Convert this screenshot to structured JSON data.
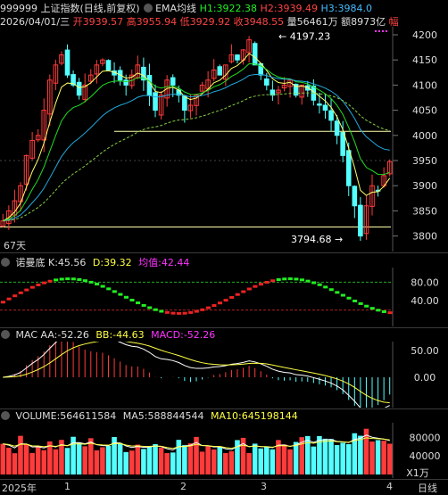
{
  "header": {
    "code": "999999",
    "name": "上证指数",
    "mode": "(日线,前复权)",
    "indicator": "EMA均线",
    "h1_label": "H1:",
    "h1": "3922.38",
    "h2_label": "H2:",
    "h2": "3939.49",
    "h3_label": "H3:",
    "h3": "3984.0"
  },
  "ohlc": {
    "date": "2026/04/01/三",
    "open_label": "开",
    "open": "3939.57",
    "high_label": "高",
    "high": "3955.94",
    "low_label": "低",
    "low": "3929.92",
    "close_label": "收",
    "close": "3948.55",
    "vol_label": "量",
    "vol": "56461万",
    "amt_label": "额",
    "amt": "8973亿",
    "more": "幅"
  },
  "price_panel": {
    "axis_ticks": [
      "4200",
      "4150",
      "4100",
      "4050",
      "4000",
      "3950",
      "3900",
      "3850",
      "3800"
    ],
    "high_mark": "4197.23",
    "low_mark": "3794.68",
    "days_label": "67天"
  },
  "kd_panel": {
    "name": "诺曼底",
    "k_label": "K:",
    "k": "45.56",
    "d_label": "D:",
    "d": "39.32",
    "avg_label": "均值:",
    "avg": "42.44",
    "axis_ticks": [
      "80.00",
      "40.00"
    ]
  },
  "macd_panel": {
    "name": "MAC",
    "aa_label": "AA:",
    "aa": "-52.26",
    "bb_label": "BB:",
    "bb": "-44.63",
    "macd_label": "MACD:",
    "macd": "-52.26",
    "axis_ticks": [
      "50.00",
      "0.00"
    ]
  },
  "volume_panel": {
    "name": "VOLUME:",
    "volume": "564611584",
    "ma5_label": "MA5:",
    "ma5": "588844544",
    "ma10_label": "MA10:",
    "ma10": "645198144",
    "axis_ticks": [
      "80000",
      "40000"
    ],
    "unit": "X1万"
  },
  "time_axis": {
    "labels": [
      "2025年",
      "1",
      "2",
      "3",
      "4"
    ],
    "period": "日线"
  },
  "colors": {
    "up": "#ff3b3b",
    "down": "#54ffff",
    "ma_yellow": "#ffff66",
    "ma_green": "#22dd22",
    "ma_cyan": "#22aadd",
    "kd_green": "#22ee22",
    "kd_red": "#ee2222",
    "purple": "#ff33ff",
    "h1": "#22ee22",
    "h2": "#ff4444",
    "h3": "#44bbff"
  }
}
